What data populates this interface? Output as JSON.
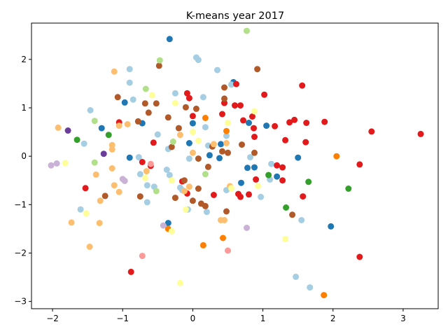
{
  "chart_data": {
    "type": "scatter",
    "title": "K-means year 2017",
    "xlabel": "",
    "ylabel": "",
    "xlim": [
      -2.3,
      3.5
    ],
    "ylim": [
      -3.15,
      2.75
    ],
    "x_ticks": [
      -2,
      -1,
      0,
      1,
      2,
      3
    ],
    "x_tick_labels": [
      "−2",
      "−1",
      "0",
      "1",
      "2",
      "3"
    ],
    "y_ticks": [
      -3,
      -2,
      -1,
      0,
      1,
      2
    ],
    "y_tick_labels": [
      "−3",
      "−2",
      "−1",
      "0",
      "1",
      "2"
    ],
    "grid": false,
    "legend": "none",
    "series": [
      {
        "color": "#1f78b4",
        "points": [
          [
            -0.33,
            2.42
          ],
          [
            -1.3,
            0.58
          ],
          [
            -0.97,
            1.11
          ],
          [
            -0.9,
            -0.03
          ],
          [
            -0.72,
            0.68
          ],
          [
            -0.05,
            0.27
          ],
          [
            0.0,
            0.68
          ],
          [
            0.24,
            0.02
          ],
          [
            0.38,
            -0.04
          ],
          [
            0.4,
            0.25
          ],
          [
            0.58,
            1.53
          ],
          [
            0.69,
            -0.55
          ],
          [
            0.8,
            0.69
          ],
          [
            0.78,
            -0.24
          ],
          [
            0.88,
            -0.23
          ],
          [
            1.05,
            0.63
          ],
          [
            1.2,
            -0.42
          ],
          [
            1.5,
            -0.03
          ],
          [
            1.97,
            -1.45
          ],
          [
            -0.35,
            -1.38
          ]
        ]
      },
      {
        "color": "#a6cee3",
        "points": [
          [
            -1.46,
            0.95
          ],
          [
            -1.55,
            0.26
          ],
          [
            -1.6,
            -1.1
          ],
          [
            -0.9,
            1.8
          ],
          [
            -0.9,
            1.52
          ],
          [
            -0.85,
            1.17
          ],
          [
            -0.77,
            -0.02
          ],
          [
            -0.75,
            -0.37
          ],
          [
            -0.65,
            -0.6
          ],
          [
            -0.65,
            -0.95
          ],
          [
            -0.55,
            -0.63
          ],
          [
            -0.5,
            0.45
          ],
          [
            -0.37,
            -0.28
          ],
          [
            -0.35,
            0.15
          ],
          [
            -0.33,
            -0.39
          ],
          [
            -0.25,
            1.3
          ],
          [
            -0.15,
            -0.7
          ],
          [
            -0.07,
            -1.1
          ],
          [
            -0.05,
            -0.05
          ],
          [
            0.05,
            2.04
          ],
          [
            0.08,
            1.99
          ],
          [
            0.15,
            1.22
          ],
          [
            0.18,
            0.6
          ],
          [
            0.2,
            -1.15
          ],
          [
            0.35,
            1.78
          ],
          [
            0.48,
            0.42
          ],
          [
            0.55,
            1.48
          ],
          [
            0.82,
            -0.02
          ],
          [
            0.97,
            -0.84
          ],
          [
            1.1,
            -0.48
          ],
          [
            1.12,
            -0.16
          ],
          [
            1.47,
            -2.49
          ],
          [
            1.55,
            -1.32
          ],
          [
            1.67,
            -2.71
          ],
          [
            0.48,
            -0.7
          ],
          [
            -0.18,
            -0.65
          ],
          [
            0.22,
            0.22
          ]
        ]
      },
      {
        "color": "#e31a1c",
        "points": [
          [
            -0.88,
            -2.39
          ],
          [
            -1.53,
            -0.66
          ],
          [
            -1.05,
            0.7
          ],
          [
            -0.72,
            -0.12
          ],
          [
            -0.6,
            -0.2
          ],
          [
            -0.56,
            0.28
          ],
          [
            -0.15,
            -0.52
          ],
          [
            -0.08,
            -0.77
          ],
          [
            -0.08,
            1.3
          ],
          [
            -0.05,
            1.2
          ],
          [
            0.0,
            0.83
          ],
          [
            0.3,
            -0.8
          ],
          [
            0.42,
            0.87
          ],
          [
            0.45,
            1.1
          ],
          [
            0.6,
            1.05
          ],
          [
            0.62,
            1.49
          ],
          [
            0.68,
            1.05
          ],
          [
            0.65,
            -0.78
          ],
          [
            0.68,
            -0.84
          ],
          [
            0.72,
            0.74
          ],
          [
            0.8,
            -0.79
          ],
          [
            0.85,
            0.82
          ],
          [
            0.87,
            0.58
          ],
          [
            0.88,
            0.4
          ],
          [
            0.9,
            -0.48
          ],
          [
            1.02,
            1.27
          ],
          [
            1.17,
            0.62
          ],
          [
            1.2,
            -0.19
          ],
          [
            1.28,
            -0.23
          ],
          [
            1.28,
            -0.5
          ],
          [
            1.32,
            0.33
          ],
          [
            1.38,
            0.7
          ],
          [
            1.45,
            0.75
          ],
          [
            1.56,
            1.46
          ],
          [
            1.57,
            -0.83
          ],
          [
            1.61,
            0.29
          ],
          [
            1.62,
            0.69
          ],
          [
            1.88,
            0.71
          ],
          [
            2.38,
            -0.17
          ],
          [
            2.38,
            -2.08
          ],
          [
            2.55,
            0.51
          ],
          [
            3.25,
            0.46
          ]
        ]
      },
      {
        "color": "#b15928",
        "points": [
          [
            -0.48,
            1.87
          ],
          [
            -1.07,
            1.22
          ],
          [
            -1.25,
            -0.82
          ],
          [
            -0.68,
            1.09
          ],
          [
            -0.63,
            0.9
          ],
          [
            -0.52,
            1.09
          ],
          [
            -0.35,
            0.8
          ],
          [
            -0.3,
            0.19
          ],
          [
            -0.25,
            -0.86
          ],
          [
            -0.2,
            0.58
          ],
          [
            -0.12,
            -0.5
          ],
          [
            -0.1,
            1.01
          ],
          [
            0.0,
            -0.92
          ],
          [
            0.05,
            0.98
          ],
          [
            0.08,
            -0.67
          ],
          [
            0.08,
            -0.05
          ],
          [
            0.12,
            -0.98
          ],
          [
            0.18,
            -1.03
          ],
          [
            0.22,
            -0.22
          ],
          [
            0.28,
            0.2
          ],
          [
            0.42,
            0.1
          ],
          [
            0.45,
            1.19
          ],
          [
            0.45,
            1.42
          ],
          [
            0.48,
            -1.14
          ],
          [
            0.5,
            0.07
          ],
          [
            0.7,
            0.24
          ],
          [
            0.88,
            0.07
          ],
          [
            0.92,
            1.8
          ],
          [
            1.42,
            -1.21
          ],
          [
            -0.75,
            -0.83
          ],
          [
            -0.78,
            0.72
          ]
        ]
      },
      {
        "color": "#fdbf6f",
        "points": [
          [
            -1.92,
            0.59
          ],
          [
            -1.73,
            -1.37
          ],
          [
            -1.47,
            -1.87
          ],
          [
            -1.38,
            -0.38
          ],
          [
            -1.32,
            -0.92
          ],
          [
            -1.33,
            -1.38
          ],
          [
            -1.12,
            1.75
          ],
          [
            -1.12,
            -0.6
          ],
          [
            -1.15,
            0.23
          ],
          [
            -1.15,
            0.14
          ],
          [
            -1.15,
            -0.25
          ],
          [
            -1.05,
            0.63
          ],
          [
            -1.05,
            -0.74
          ],
          [
            -0.93,
            0.66
          ],
          [
            -0.66,
            -0.31
          ],
          [
            -0.18,
            0.44
          ],
          [
            -0.12,
            -0.72
          ],
          [
            -0.05,
            -0.63
          ],
          [
            0.0,
            0.07
          ],
          [
            0.3,
            0.25
          ],
          [
            0.4,
            -1.32
          ],
          [
            0.45,
            -1.32
          ],
          [
            0.48,
            0.27
          ],
          [
            0.53,
            -0.62
          ]
        ]
      },
      {
        "color": "#33a02c",
        "points": [
          [
            -1.65,
            0.34
          ],
          [
            -1.2,
            0.44
          ],
          [
            1.08,
            -0.39
          ],
          [
            1.33,
            -1.06
          ],
          [
            1.65,
            -0.53
          ],
          [
            2.22,
            -0.67
          ]
        ]
      },
      {
        "color": "#b2df8a",
        "points": [
          [
            0.77,
            2.59
          ],
          [
            -0.47,
            1.98
          ],
          [
            -1.4,
            0.73
          ],
          [
            -1.4,
            -0.13
          ],
          [
            -0.67,
            1.39
          ],
          [
            -0.52,
            -0.72
          ],
          [
            -0.28,
            0.3
          ],
          [
            0.18,
            -0.37
          ]
        ]
      },
      {
        "color": "#ff7f00",
        "points": [
          [
            -0.35,
            -1.5
          ],
          [
            0.15,
            -1.84
          ],
          [
            0.18,
            0.79
          ],
          [
            0.43,
            -1.69
          ],
          [
            0.48,
            0.52
          ],
          [
            1.87,
            -2.87
          ],
          [
            2.05,
            0.0
          ]
        ]
      },
      {
        "color": "#ffff99",
        "points": [
          [
            -1.82,
            -0.14
          ],
          [
            -1.52,
            -1.18
          ],
          [
            -0.68,
            -0.45
          ],
          [
            -0.58,
            1.26
          ],
          [
            -0.3,
            -0.5
          ],
          [
            -0.25,
            1.1
          ],
          [
            -0.18,
            -2.62
          ],
          [
            -0.1,
            -1.1
          ],
          [
            0.08,
            0.32
          ],
          [
            0.5,
            0.69
          ],
          [
            0.55,
            -0.66
          ],
          [
            0.93,
            -0.62
          ],
          [
            1.32,
            -1.71
          ],
          [
            -0.3,
            -1.55
          ],
          [
            0.88,
            0.93
          ],
          [
            0.0,
            0.5
          ]
        ]
      },
      {
        "color": "#fb9a99",
        "points": [
          [
            -0.72,
            -2.06
          ],
          [
            0.5,
            -1.95
          ],
          [
            -0.6,
            -0.16
          ]
        ]
      },
      {
        "color": "#cab2d6",
        "points": [
          [
            -2.02,
            -0.19
          ],
          [
            -1.94,
            -0.15
          ],
          [
            -1.0,
            -0.47
          ],
          [
            -0.97,
            -0.51
          ],
          [
            -0.42,
            -1.43
          ],
          [
            0.77,
            -1.48
          ]
        ]
      },
      {
        "color": "#6a3d9a",
        "points": [
          [
            -1.78,
            0.53
          ],
          [
            -1.27,
            0.05
          ]
        ]
      }
    ]
  }
}
